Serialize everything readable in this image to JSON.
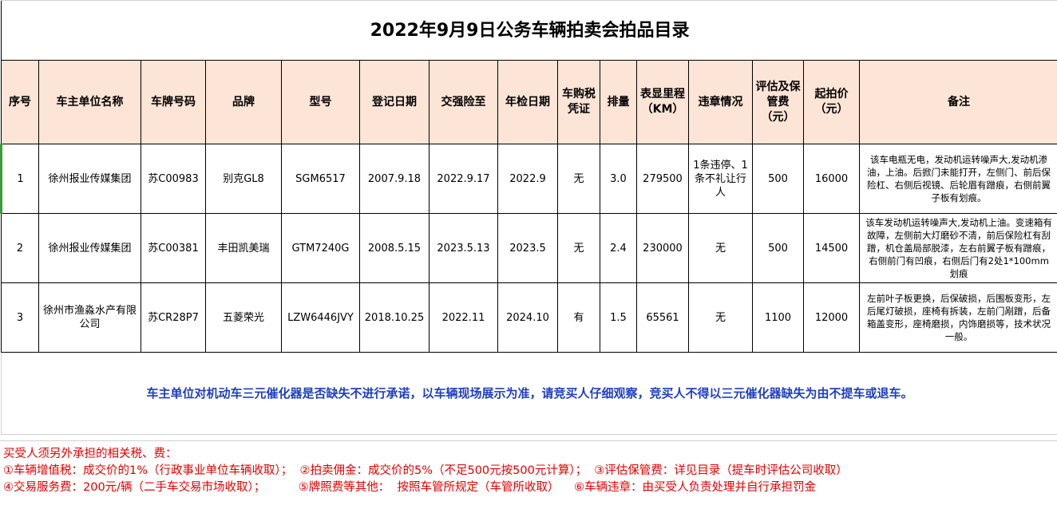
{
  "title": "2022年9月9日公务车辆拍卖会拍品目录",
  "headers": [
    "序号",
    "车主单位名称",
    "车牌号码",
    "品牌",
    "型号",
    "登记日期",
    "交强险至",
    "年检日期",
    "车购税凭证",
    "排量",
    "表显里程（KM）",
    "违章情况",
    "评估及保管费（元）",
    "起拍价（元）",
    "备注"
  ],
  "rows": [
    [
      "1",
      "徐州报业传媒集团",
      "苏C00983",
      "别克GL8",
      "SGM6517",
      "2007.9.18",
      "2022.9.17",
      "2022.9",
      "无",
      "3.0",
      "279500",
      "1条违停、1条不礼让行人",
      "500",
      "16000",
      "该车电瓶无电，发动机运转噪声大,发动机渗油，上油。后掀门未能打开，左侧门、前后保险杠、右侧后视镜、后轮眉有蹭痕，右侧前翼子板有划痕。"
    ],
    [
      "2",
      "徐州报业传媒集团",
      "苏C00381",
      "丰田凯美瑞",
      "GTM7240G",
      "2008.5.15",
      "2023.5.13",
      "2023.5",
      "无",
      "2.4",
      "230000",
      "无",
      "500",
      "14500",
      "该车发动机运转噪声大,发动机上油。变速箱有故障，左侧前大灯磨砂不清，前后保险杠有刮蹭，机仓盖局部脱漆，左右前翼子板有蹭痕，右侧前门有凹痕，右侧后门有2处1*100mm划痕"
    ],
    [
      "3",
      "徐州市渔淼水产有限公司",
      "苏CR28P7",
      "五菱荣光",
      "LZW6446JVY",
      "2018.10.25",
      "2022.11",
      "2024.10",
      "有",
      "1.5",
      "65561",
      "无",
      "1100",
      "12000",
      "左前叶子板更换，后保破损，后围板变形，左后尾灯破损，座椅有拆装，左前门剐蹭，后备箱盖变形，座椅磨损，内饰磨损等，技术状况一般。"
    ]
  ],
  "notice": "车主单位对机动车三元催化器是否缺失不进行承诺，以车辆现场展示为准，请竞买人仔细观察，竞买人不得以三元催化器缺失为由不提车或退车。",
  "footer": [
    "买受人须另外承担的相关税、费：",
    "①车辆增值税：成交价的1%（行政事业单位车辆收取）；  ②拍卖佣金：成交价的5%（不足500元按500元计算）；  ③评估保管费：详见目录（提车时评估公司收取）",
    "④交易服务费：200元/辆（二手车交易市场收取）；         ⑤牌照费等其他：  按照车管所规定（车管所收取）    ⑥车辆违章：由买受人负责处理并自行承担罚金"
  ],
  "colors": {
    "header_bg": "#fce4d6",
    "notice": "#1f3fbf",
    "footer": "#e00000"
  }
}
